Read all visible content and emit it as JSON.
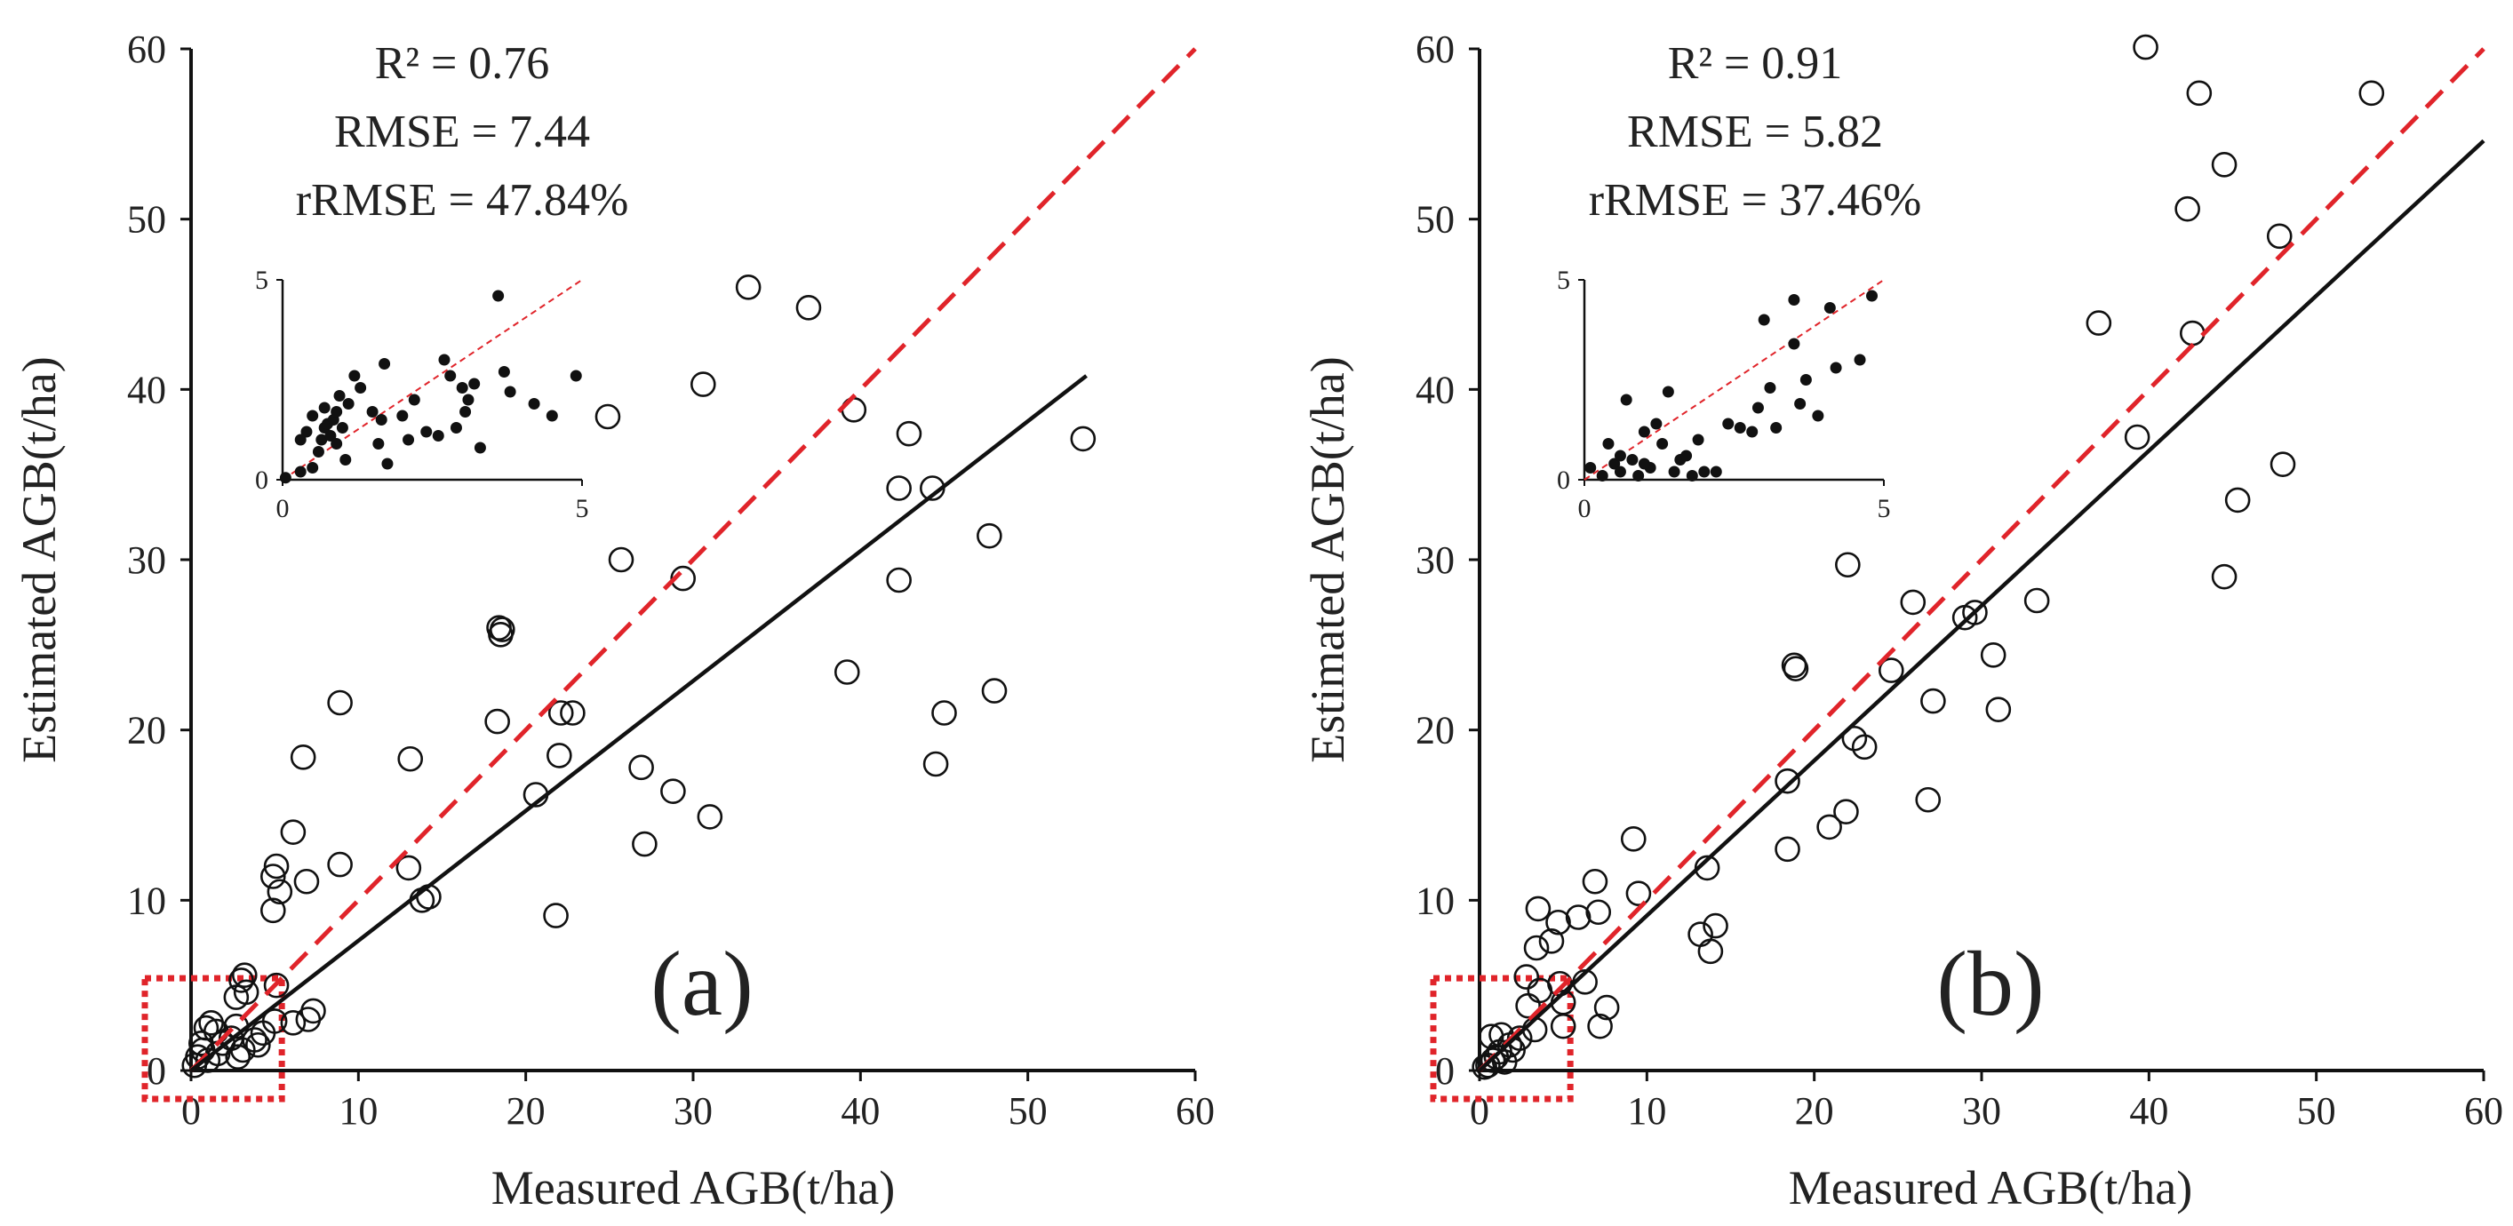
{
  "chart_data": [
    {
      "type": "scatter",
      "panel_label": "(a)",
      "xlabel": "Measured AGB(t/ha)",
      "ylabel": "Estimated AGB(t/ha)",
      "xlim": [
        0,
        60
      ],
      "ylim": [
        0,
        60
      ],
      "xticks": [
        "0",
        "10",
        "20",
        "30",
        "40",
        "50",
        "60"
      ],
      "yticks": [
        "0",
        "10",
        "20",
        "30",
        "40",
        "50",
        "60"
      ],
      "stats": [
        "R² = 0.76",
        "RMSE = 7.44",
        "rRMSE = 47.84%"
      ],
      "one_to_one_line": {
        "x": [
          0,
          60
        ],
        "y": [
          0,
          60
        ],
        "color": "#e0242a",
        "style": "dashed"
      },
      "fit_line": {
        "x": [
          0,
          53.5
        ],
        "y": [
          0,
          40.8
        ],
        "color": "#111111"
      },
      "highlight_box": {
        "x": [
          0,
          5
        ],
        "y": [
          0,
          5
        ],
        "color": "#e0242a"
      },
      "points": [
        [
          33.3,
          46.0
        ],
        [
          36.9,
          44.8
        ],
        [
          30.6,
          40.3
        ],
        [
          39.6,
          38.8
        ],
        [
          24.9,
          38.4
        ],
        [
          42.9,
          37.4
        ],
        [
          53.3,
          37.1
        ],
        [
          42.3,
          34.2
        ],
        [
          44.3,
          34.2
        ],
        [
          47.7,
          31.4
        ],
        [
          25.7,
          30.0
        ],
        [
          29.4,
          28.9
        ],
        [
          42.3,
          28.8
        ],
        [
          18.4,
          26.0
        ],
        [
          18.6,
          25.9
        ],
        [
          18.5,
          25.6
        ],
        [
          39.2,
          23.4
        ],
        [
          48.0,
          22.3
        ],
        [
          8.9,
          21.6
        ],
        [
          22.1,
          21.0
        ],
        [
          22.8,
          21.0
        ],
        [
          45.0,
          21.0
        ],
        [
          18.3,
          20.5
        ],
        [
          6.7,
          18.4
        ],
        [
          13.1,
          18.3
        ],
        [
          22.0,
          18.5
        ],
        [
          44.5,
          18.0
        ],
        [
          26.9,
          17.8
        ],
        [
          28.8,
          16.4
        ],
        [
          20.6,
          16.2
        ],
        [
          31.0,
          14.9
        ],
        [
          6.1,
          14.0
        ],
        [
          27.1,
          13.3
        ],
        [
          4.9,
          11.4
        ],
        [
          5.1,
          12.0
        ],
        [
          6.9,
          11.1
        ],
        [
          8.9,
          12.1
        ],
        [
          13.0,
          11.9
        ],
        [
          5.3,
          10.5
        ],
        [
          13.8,
          10.0
        ],
        [
          14.2,
          10.2
        ],
        [
          4.9,
          9.4
        ],
        [
          21.8,
          9.1
        ],
        [
          3.2,
          5.6
        ],
        [
          3.0,
          5.3
        ],
        [
          5.1,
          5.0
        ],
        [
          3.3,
          4.6
        ],
        [
          2.7,
          4.3
        ],
        [
          7.3,
          3.5
        ],
        [
          7.0,
          3.0
        ],
        [
          6.1,
          2.8
        ],
        [
          5.0,
          2.9
        ],
        [
          4.3,
          2.2
        ],
        [
          3.8,
          1.8
        ],
        [
          4.0,
          1.5
        ],
        [
          2.4,
          1.9
        ],
        [
          1.9,
          1.6
        ],
        [
          1.2,
          2.8
        ],
        [
          1.5,
          2.3
        ],
        [
          2.7,
          2.6
        ],
        [
          0.9,
          2.5
        ],
        [
          0.6,
          1.6
        ],
        [
          0.4,
          0.8
        ],
        [
          0.2,
          0.3
        ],
        [
          3.1,
          1.2
        ],
        [
          2.8,
          0.8
        ],
        [
          1.6,
          1.0
        ],
        [
          0.7,
          1.2
        ],
        [
          1.0,
          0.6
        ]
      ],
      "inset": {
        "xlim": [
          0,
          5
        ],
        "ylim": [
          0,
          5
        ],
        "xticks": [
          "0",
          "5"
        ],
        "yticks": [
          "0",
          "5"
        ],
        "points": [
          [
            0.05,
            0.05
          ],
          [
            0.3,
            0.2
          ],
          [
            0.4,
            1.2
          ],
          [
            0.5,
            1.6
          ],
          [
            0.6,
            0.7
          ],
          [
            0.65,
            1.0
          ],
          [
            0.7,
            1.3
          ],
          [
            0.7,
            1.8
          ],
          [
            0.75,
            1.4
          ],
          [
            0.8,
            1.1
          ],
          [
            0.85,
            1.5
          ],
          [
            0.9,
            0.9
          ],
          [
            0.9,
            1.7
          ],
          [
            0.95,
            2.1
          ],
          [
            1.0,
            1.3
          ],
          [
            1.05,
            0.5
          ],
          [
            1.1,
            1.9
          ],
          [
            1.2,
            2.6
          ],
          [
            1.3,
            2.3
          ],
          [
            1.5,
            1.7
          ],
          [
            1.6,
            0.9
          ],
          [
            1.65,
            1.5
          ],
          [
            1.7,
            2.9
          ],
          [
            1.75,
            0.4
          ],
          [
            2.0,
            1.6
          ],
          [
            2.1,
            1.0
          ],
          [
            2.2,
            2.0
          ],
          [
            2.4,
            1.2
          ],
          [
            2.6,
            1.1
          ],
          [
            2.7,
            3.0
          ],
          [
            2.8,
            2.6
          ],
          [
            2.9,
            1.3
          ],
          [
            3.0,
            2.3
          ],
          [
            3.05,
            1.7
          ],
          [
            3.1,
            2.0
          ],
          [
            3.2,
            2.4
          ],
          [
            3.3,
            0.8
          ],
          [
            3.6,
            4.6
          ],
          [
            3.7,
            2.7
          ],
          [
            3.8,
            2.2
          ],
          [
            4.2,
            1.9
          ],
          [
            4.5,
            1.6
          ],
          [
            4.9,
            2.6
          ],
          [
            0.3,
            1.0
          ],
          [
            0.5,
            0.3
          ]
        ]
      }
    },
    {
      "type": "scatter",
      "panel_label": "(b)",
      "xlabel": "Measured AGB(t/ha)",
      "ylabel": "Estimated AGB(t/ha)",
      "xlim": [
        0,
        60
      ],
      "ylim": [
        0,
        60
      ],
      "xticks": [
        "0",
        "10",
        "20",
        "30",
        "40",
        "50",
        "60"
      ],
      "yticks": [
        "0",
        "10",
        "20",
        "30",
        "40",
        "50",
        "60"
      ],
      "stats": [
        "R² = 0.91",
        "RMSE = 5.82",
        "rRMSE = 37.46%"
      ],
      "one_to_one_line": {
        "x": [
          0,
          60
        ],
        "y": [
          0,
          60
        ],
        "color": "#e0242a",
        "style": "dashed"
      },
      "fit_line": {
        "x": [
          0,
          60
        ],
        "y": [
          0,
          54.6
        ],
        "color": "#111111"
      },
      "highlight_box": {
        "x": [
          0,
          5
        ],
        "y": [
          0,
          5
        ],
        "color": "#e0242a"
      },
      "points": [
        [
          39.8,
          60.1
        ],
        [
          43.0,
          57.4
        ],
        [
          53.3,
          57.4
        ],
        [
          44.5,
          53.2
        ],
        [
          42.3,
          50.6
        ],
        [
          47.8,
          49.0
        ],
        [
          37.0,
          43.9
        ],
        [
          42.6,
          43.3
        ],
        [
          39.3,
          37.2
        ],
        [
          48.0,
          35.6
        ],
        [
          45.3,
          33.5
        ],
        [
          44.5,
          29.0
        ],
        [
          22.0,
          29.7
        ],
        [
          25.9,
          27.5
        ],
        [
          29.0,
          26.6
        ],
        [
          29.6,
          26.9
        ],
        [
          33.3,
          27.6
        ],
        [
          30.7,
          24.4
        ],
        [
          18.8,
          23.8
        ],
        [
          18.9,
          23.6
        ],
        [
          24.6,
          23.5
        ],
        [
          27.1,
          21.7
        ],
        [
          31.0,
          21.2
        ],
        [
          22.4,
          19.5
        ],
        [
          23.0,
          19.0
        ],
        [
          18.4,
          17.0
        ],
        [
          26.8,
          15.9
        ],
        [
          21.9,
          15.2
        ],
        [
          20.9,
          14.3
        ],
        [
          9.2,
          13.6
        ],
        [
          18.4,
          13.0
        ],
        [
          6.9,
          11.1
        ],
        [
          9.5,
          10.4
        ],
        [
          13.6,
          11.9
        ],
        [
          3.5,
          9.5
        ],
        [
          5.9,
          9.0
        ],
        [
          4.7,
          8.7
        ],
        [
          7.1,
          9.3
        ],
        [
          4.3,
          7.6
        ],
        [
          3.4,
          7.2
        ],
        [
          13.2,
          8.0
        ],
        [
          14.1,
          8.5
        ],
        [
          13.8,
          7.0
        ],
        [
          2.8,
          5.5
        ],
        [
          4.8,
          5.1
        ],
        [
          6.3,
          5.2
        ],
        [
          3.6,
          4.7
        ],
        [
          5.0,
          4.0
        ],
        [
          2.9,
          3.8
        ],
        [
          7.6,
          3.7
        ],
        [
          7.2,
          2.6
        ],
        [
          5.0,
          2.6
        ],
        [
          3.3,
          2.4
        ],
        [
          2.4,
          1.9
        ],
        [
          1.8,
          1.5
        ],
        [
          1.2,
          1.1
        ],
        [
          0.8,
          0.6
        ],
        [
          0.5,
          0.3
        ],
        [
          0.3,
          0.2
        ],
        [
          0.7,
          2.0
        ],
        [
          1.3,
          2.1
        ],
        [
          2.0,
          1.2
        ],
        [
          1.0,
          0.8
        ],
        [
          1.5,
          0.5
        ]
      ],
      "inset": {
        "xlim": [
          0,
          5
        ],
        "ylim": [
          0,
          5
        ],
        "xticks": [
          "0",
          "5"
        ],
        "yticks": [
          "0",
          "5"
        ],
        "points": [
          [
            0.1,
            0.3
          ],
          [
            0.3,
            0.1
          ],
          [
            0.4,
            0.9
          ],
          [
            0.5,
            0.4
          ],
          [
            0.6,
            0.2
          ],
          [
            0.7,
            2.0
          ],
          [
            0.8,
            0.5
          ],
          [
            0.9,
            0.1
          ],
          [
            1.0,
            1.2
          ],
          [
            1.1,
            0.3
          ],
          [
            1.2,
            1.4
          ],
          [
            1.3,
            0.9
          ],
          [
            1.4,
            2.2
          ],
          [
            1.5,
            0.2
          ],
          [
            1.6,
            0.5
          ],
          [
            1.7,
            0.6
          ],
          [
            1.8,
            0.1
          ],
          [
            1.9,
            1.0
          ],
          [
            2.0,
            0.2
          ],
          [
            2.2,
            0.2
          ],
          [
            2.4,
            1.4
          ],
          [
            2.6,
            1.3
          ],
          [
            2.8,
            1.2
          ],
          [
            2.9,
            1.8
          ],
          [
            3.1,
            2.3
          ],
          [
            3.2,
            1.3
          ],
          [
            3.5,
            3.4
          ],
          [
            3.6,
            1.9
          ],
          [
            3.7,
            2.5
          ],
          [
            3.9,
            1.6
          ],
          [
            4.1,
            4.3
          ],
          [
            4.2,
            2.8
          ],
          [
            3.5,
            4.5
          ],
          [
            4.6,
            3.0
          ],
          [
            4.8,
            4.6
          ],
          [
            3.0,
            4.0
          ],
          [
            1.0,
            0.4
          ],
          [
            0.6,
            0.6
          ]
        ]
      }
    }
  ]
}
